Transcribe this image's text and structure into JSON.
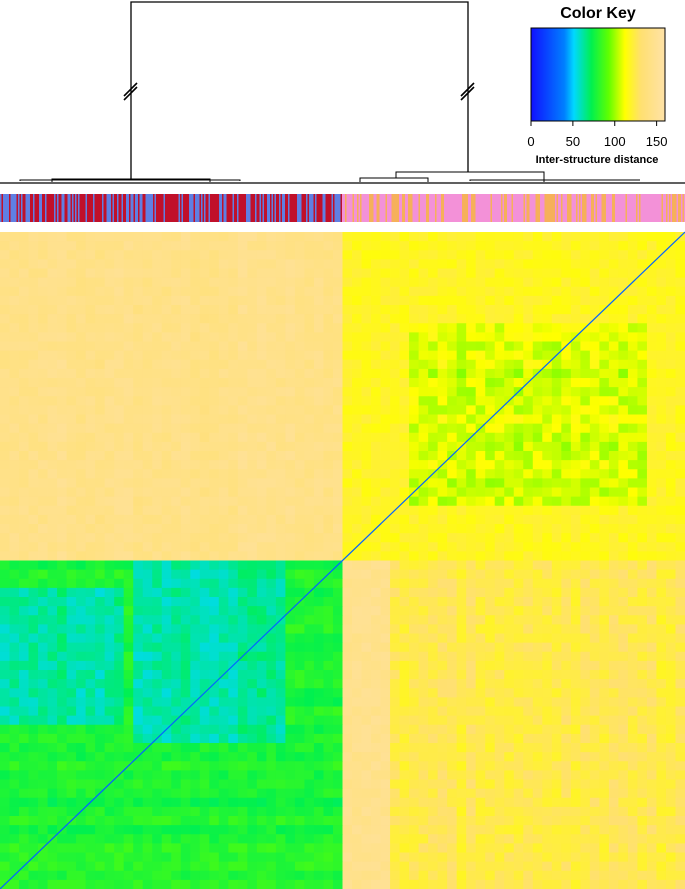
{
  "chart_data": {
    "type": "heatmap",
    "title": "",
    "xlabel": "",
    "ylabel": "",
    "clusters": [
      "left",
      "right"
    ],
    "matrix_blocks": [
      {
        "row_cluster": "top",
        "col_cluster": "left",
        "value": 145
      },
      {
        "row_cluster": "top",
        "col_cluster": "right",
        "value": 115
      },
      {
        "row_cluster": "bottom",
        "col_cluster": "left",
        "value": 70
      },
      {
        "row_cluster": "bottom",
        "col_cluster": "right",
        "value": 130
      }
    ],
    "diagonal_value": 0,
    "dendrogram": {
      "split_marks": 2
    },
    "annotation_bar": {
      "left_colors": [
        "#c0102a",
        "#5f7fe3"
      ],
      "right_colors": [
        "#f391d8",
        "#f6b05a"
      ]
    },
    "color_key": {
      "title": "Color Key",
      "label": "Inter-structure distance",
      "ticks": [
        "0",
        "50",
        "100",
        "150"
      ],
      "tick_values": [
        0,
        50,
        100,
        150
      ],
      "range": [
        0,
        160
      ],
      "colors": [
        "#0000ff",
        "#00a8ff",
        "#00ff40",
        "#80ff00",
        "#ffff00",
        "#ffe08a",
        "#ffe3a6"
      ]
    }
  }
}
